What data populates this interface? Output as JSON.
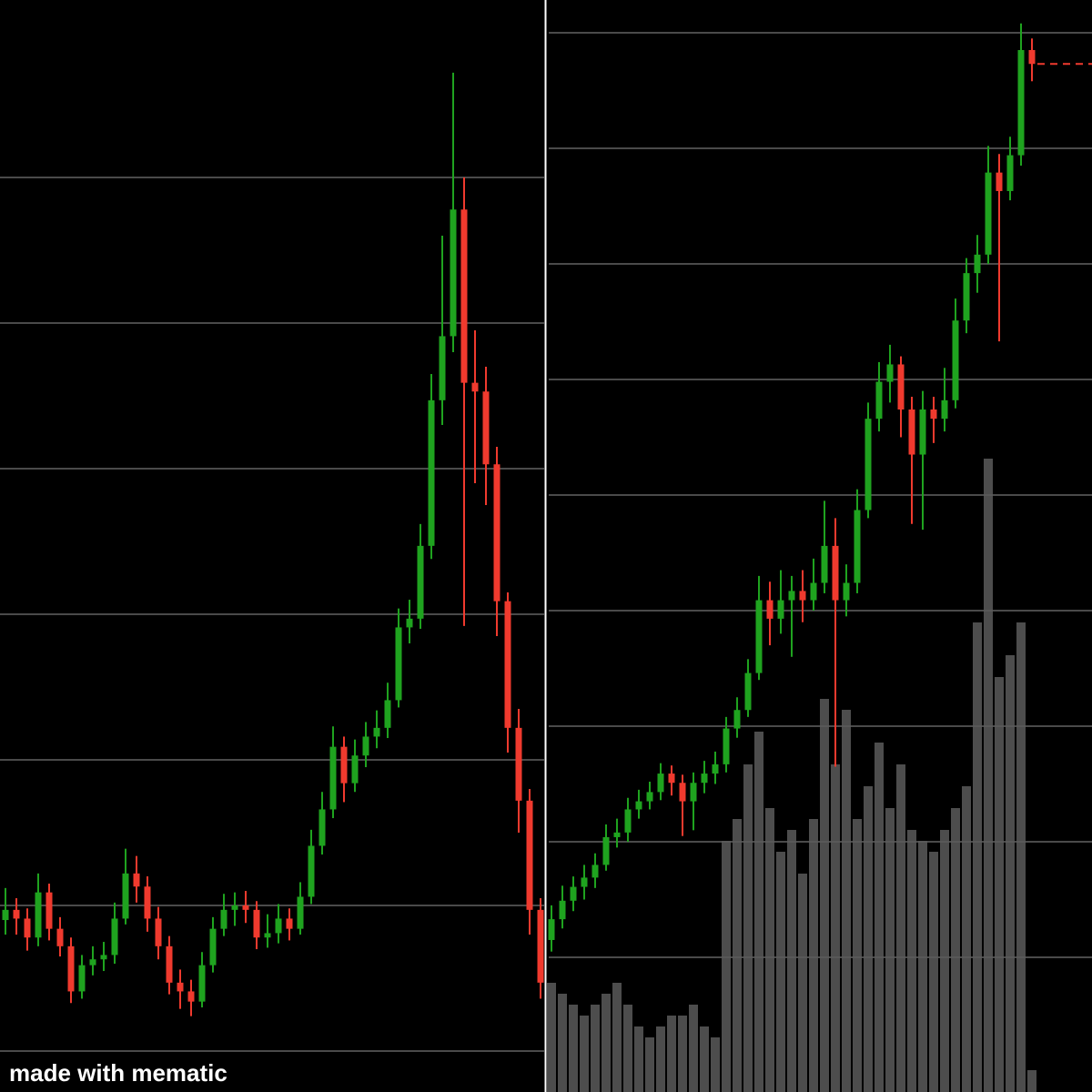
{
  "watermark": "made with mematic",
  "chart_data": [
    {
      "type": "candlestick",
      "ylim": [
        -2.81,
        72.19
      ],
      "yticks": [
        0,
        10,
        20,
        30,
        40,
        50,
        60
      ],
      "grid": true,
      "up_color": "#1fa31f",
      "down_color": "#f03a2e",
      "candles": [
        [
          9.0,
          11.2,
          8.0,
          9.7
        ],
        [
          9.7,
          10.5,
          8.0,
          9.1
        ],
        [
          9.1,
          9.8,
          6.9,
          7.8
        ],
        [
          7.8,
          12.2,
          7.2,
          10.9
        ],
        [
          10.9,
          11.5,
          7.6,
          8.4
        ],
        [
          8.4,
          9.2,
          6.5,
          7.2
        ],
        [
          7.2,
          7.8,
          3.3,
          4.1
        ],
        [
          4.1,
          6.6,
          3.6,
          5.9
        ],
        [
          5.9,
          7.2,
          5.2,
          6.3
        ],
        [
          6.3,
          7.5,
          5.5,
          6.6
        ],
        [
          6.6,
          10.2,
          6.0,
          9.1
        ],
        [
          9.1,
          13.9,
          8.7,
          12.2
        ],
        [
          12.2,
          13.4,
          10.2,
          11.3
        ],
        [
          11.3,
          12.0,
          8.2,
          9.1
        ],
        [
          9.1,
          9.9,
          6.3,
          7.2
        ],
        [
          7.2,
          7.9,
          3.9,
          4.7
        ],
        [
          4.7,
          5.6,
          2.9,
          4.1
        ],
        [
          4.1,
          4.9,
          2.4,
          3.4
        ],
        [
          3.4,
          6.8,
          3.0,
          5.9
        ],
        [
          5.9,
          9.2,
          5.4,
          8.4
        ],
        [
          8.4,
          10.8,
          7.9,
          9.7
        ],
        [
          9.7,
          10.9,
          8.6,
          10.0
        ],
        [
          10.0,
          11.0,
          8.8,
          9.7
        ],
        [
          9.7,
          10.3,
          7.0,
          7.8
        ],
        [
          7.8,
          9.4,
          7.1,
          8.1
        ],
        [
          8.1,
          10.1,
          7.4,
          9.1
        ],
        [
          9.1,
          9.8,
          7.6,
          8.4
        ],
        [
          8.4,
          11.6,
          8.0,
          10.6
        ],
        [
          10.6,
          15.2,
          10.1,
          14.1
        ],
        [
          14.1,
          17.8,
          13.5,
          16.6
        ],
        [
          16.6,
          22.3,
          16.0,
          20.9
        ],
        [
          20.9,
          21.6,
          17.1,
          18.4
        ],
        [
          18.4,
          21.4,
          17.8,
          20.3
        ],
        [
          20.3,
          22.6,
          19.5,
          21.6
        ],
        [
          21.6,
          23.4,
          20.8,
          22.2
        ],
        [
          22.2,
          25.3,
          21.5,
          24.1
        ],
        [
          24.1,
          30.4,
          23.6,
          29.1
        ],
        [
          29.1,
          31.0,
          28.0,
          29.7
        ],
        [
          29.7,
          36.2,
          29.0,
          34.7
        ],
        [
          34.7,
          46.5,
          33.8,
          44.7
        ],
        [
          44.7,
          56.0,
          43.0,
          49.1
        ],
        [
          49.1,
          67.2,
          48.0,
          57.8
        ],
        [
          57.8,
          60.0,
          29.2,
          45.9
        ],
        [
          45.9,
          49.5,
          39.0,
          45.3
        ],
        [
          45.3,
          47.0,
          37.5,
          40.3
        ],
        [
          40.3,
          41.5,
          28.5,
          30.9
        ],
        [
          30.9,
          31.5,
          20.5,
          22.2
        ],
        [
          22.2,
          23.5,
          15.0,
          17.2
        ],
        [
          17.2,
          18.0,
          8.0,
          9.7
        ],
        [
          9.7,
          10.5,
          3.6,
          4.7
        ]
      ]
    },
    {
      "type": "candlestick",
      "ylim": [
        -11.65,
        82.83
      ],
      "yticks": [
        0,
        10,
        20,
        30,
        40,
        50,
        60,
        70,
        80
      ],
      "grid": true,
      "up_color": "#1fa31f",
      "down_color": "#f03a2e",
      "last_price_line": true,
      "candles": [
        [
          1.5,
          4.5,
          0.5,
          3.3
        ],
        [
          3.3,
          6.2,
          2.5,
          4.9
        ],
        [
          4.9,
          7.0,
          4.0,
          6.1
        ],
        [
          6.1,
          8.0,
          5.0,
          6.9
        ],
        [
          6.9,
          9.0,
          6.0,
          8.0
        ],
        [
          8.0,
          11.5,
          7.5,
          10.4
        ],
        [
          10.4,
          12.0,
          9.5,
          10.8
        ],
        [
          10.8,
          13.8,
          10.0,
          12.8
        ],
        [
          12.8,
          14.5,
          12.0,
          13.5
        ],
        [
          13.5,
          15.2,
          12.8,
          14.3
        ],
        [
          14.3,
          16.8,
          13.6,
          15.9
        ],
        [
          15.9,
          16.6,
          14.0,
          15.1
        ],
        [
          15.1,
          15.8,
          10.5,
          13.5
        ],
        [
          13.5,
          16.0,
          11.0,
          15.1
        ],
        [
          15.1,
          17.0,
          14.2,
          15.9
        ],
        [
          15.9,
          17.8,
          15.0,
          16.7
        ],
        [
          16.7,
          20.8,
          16.0,
          19.8
        ],
        [
          19.8,
          22.5,
          19.0,
          21.4
        ],
        [
          21.4,
          25.8,
          20.8,
          24.6
        ],
        [
          24.6,
          33.0,
          24.0,
          30.9
        ],
        [
          30.9,
          32.5,
          27.0,
          29.3
        ],
        [
          29.3,
          33.5,
          28.0,
          30.9
        ],
        [
          30.9,
          33.0,
          26.0,
          31.7
        ],
        [
          31.7,
          33.5,
          29.0,
          30.9
        ],
        [
          30.9,
          34.5,
          30.0,
          32.4
        ],
        [
          32.4,
          39.5,
          31.5,
          35.6
        ],
        [
          35.6,
          38.0,
          16.5,
          30.9
        ],
        [
          30.9,
          34.0,
          29.5,
          32.4
        ],
        [
          32.4,
          40.5,
          31.5,
          38.7
        ],
        [
          38.7,
          48.0,
          38.0,
          46.6
        ],
        [
          46.6,
          51.5,
          45.5,
          49.8
        ],
        [
          49.8,
          53.0,
          48.0,
          51.3
        ],
        [
          51.3,
          52.0,
          45.0,
          47.4
        ],
        [
          47.4,
          48.5,
          37.5,
          43.5
        ],
        [
          43.5,
          49.0,
          37.0,
          47.4
        ],
        [
          47.4,
          48.5,
          44.5,
          46.6
        ],
        [
          46.6,
          51.0,
          45.5,
          48.2
        ],
        [
          48.2,
          57.0,
          47.5,
          55.1
        ],
        [
          55.1,
          60.5,
          54.0,
          59.2
        ],
        [
          59.2,
          62.5,
          57.5,
          60.8
        ],
        [
          60.8,
          70.2,
          60.0,
          67.9
        ],
        [
          67.9,
          69.5,
          53.3,
          66.3
        ],
        [
          66.3,
          71.0,
          65.5,
          69.4
        ],
        [
          69.4,
          80.8,
          68.5,
          78.5
        ],
        [
          78.5,
          79.5,
          75.8,
          77.3
        ]
      ],
      "y2lim": [
        0,
        100
      ],
      "volume": {
        "color": "#5a5a5a",
        "axis": "y2",
        "values": [
          10,
          9,
          8,
          7,
          8,
          9,
          10,
          8,
          6,
          5,
          6,
          7,
          7,
          8,
          6,
          5,
          23,
          25,
          30,
          33,
          26,
          22,
          24,
          20,
          25,
          36,
          30,
          35,
          25,
          28,
          32,
          26,
          30,
          24,
          23,
          22,
          24,
          26,
          28,
          43,
          58,
          38,
          40,
          43,
          2
        ]
      }
    }
  ]
}
